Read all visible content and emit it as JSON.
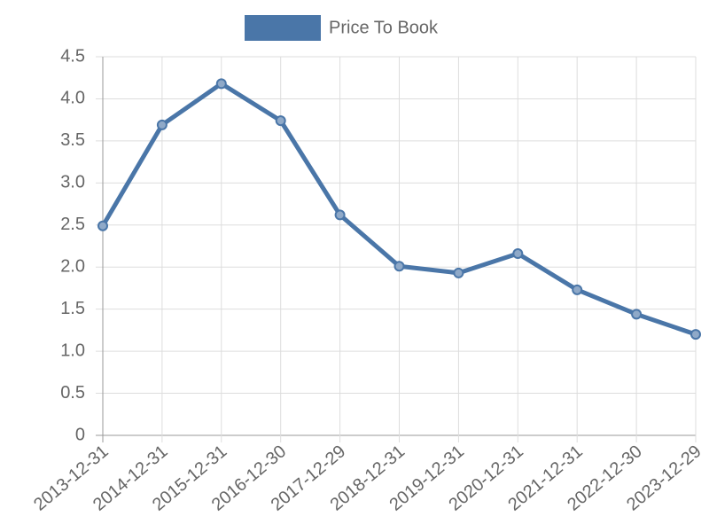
{
  "chart_data": {
    "type": "line",
    "categories": [
      "2013-12-31",
      "2014-12-31",
      "2015-12-31",
      "2016-12-30",
      "2017-12-29",
      "2018-12-31",
      "2019-12-31",
      "2020-12-31",
      "2021-12-31",
      "2022-12-30",
      "2023-12-29"
    ],
    "series": [
      {
        "name": "Price To Book",
        "color": "#4a76a8",
        "values": [
          2.49,
          3.69,
          4.18,
          3.74,
          2.62,
          2.01,
          1.93,
          2.16,
          1.73,
          1.44,
          1.2
        ]
      }
    ],
    "ylim": [
      0,
      4.5
    ],
    "yticks": [
      0,
      0.5,
      {
        "value": 1,
        "label": "1.0"
      },
      1.5,
      {
        "value": 2,
        "label": "2.0"
      },
      2.5,
      {
        "value": 3,
        "label": "3.0"
      },
      3.5,
      {
        "value": 4,
        "label": "4.0"
      },
      4.5
    ],
    "grid": true,
    "legend": "top"
  }
}
